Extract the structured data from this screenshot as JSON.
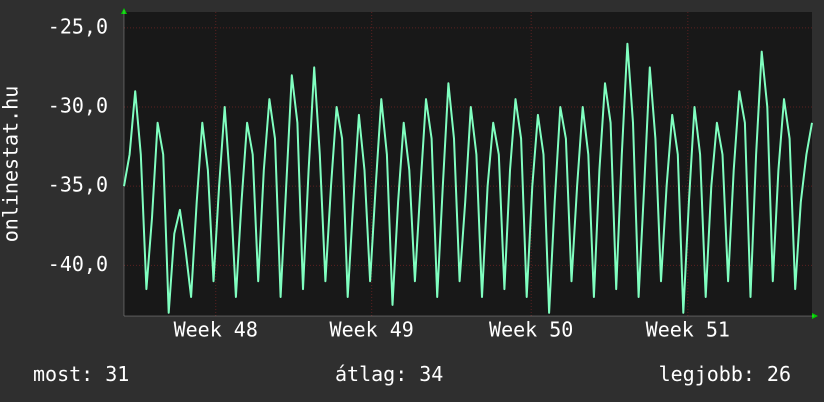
{
  "chart_data": {
    "type": "line",
    "ylabel": "onlinestat.hu",
    "xlim": [
      0,
      30.75
    ],
    "xticks": [
      {
        "value": 4.1,
        "label": "Week 48"
      },
      {
        "value": 11.07,
        "label": "Week 49"
      },
      {
        "value": 18.2,
        "label": "Week 50"
      },
      {
        "value": 25.2,
        "label": "Week 51"
      }
    ],
    "ylim": [
      -43.2,
      -24
    ],
    "yticks": [
      {
        "value": -25,
        "label": "-25,0"
      },
      {
        "value": -30,
        "label": "-30,0"
      },
      {
        "value": -35,
        "label": "-35,0"
      },
      {
        "value": -40,
        "label": "-40,0"
      }
    ],
    "grid": true,
    "series": [
      {
        "color": "#80ffc0",
        "x": [
          0,
          0.25,
          0.5,
          0.75,
          1,
          1.25,
          1.5,
          1.75,
          2,
          2.25,
          2.5,
          2.75,
          3,
          3.25,
          3.5,
          3.75,
          4,
          4.25,
          4.5,
          4.75,
          5,
          5.25,
          5.5,
          5.75,
          6,
          6.25,
          6.5,
          6.75,
          7,
          7.25,
          7.5,
          7.75,
          8,
          8.25,
          8.5,
          8.75,
          9,
          9.25,
          9.5,
          9.75,
          10,
          10.25,
          10.5,
          10.75,
          11,
          11.25,
          11.5,
          11.75,
          12,
          12.25,
          12.5,
          12.75,
          13,
          13.25,
          13.5,
          13.75,
          14,
          14.25,
          14.5,
          14.75,
          15,
          15.25,
          15.5,
          15.75,
          16,
          16.25,
          16.5,
          16.75,
          17,
          17.25,
          17.5,
          17.75,
          18,
          18.25,
          18.5,
          18.75,
          19,
          19.25,
          19.5,
          19.75,
          20,
          20.25,
          20.5,
          20.75,
          21,
          21.25,
          21.5,
          21.75,
          22,
          22.25,
          22.5,
          22.75,
          23,
          23.25,
          23.5,
          23.75,
          24,
          24.25,
          24.5,
          24.75,
          25,
          25.25,
          25.5,
          25.75,
          26,
          26.25,
          26.5,
          26.75,
          27,
          27.25,
          27.5,
          27.75,
          28,
          28.25,
          28.5,
          28.75,
          29,
          29.25,
          29.5,
          29.75,
          30,
          30.25,
          30.5,
          30.75
        ],
        "values": [
          -35,
          -33,
          -29,
          -33,
          -41.5,
          -37,
          -31,
          -33,
          -43,
          -38,
          -36.5,
          -39,
          -42,
          -36,
          -31,
          -34,
          -41,
          -35,
          -30,
          -35,
          -42,
          -36,
          -31,
          -33,
          -41,
          -34,
          -29.5,
          -32,
          -42,
          -35,
          -28,
          -31,
          -41.5,
          -34,
          -27.5,
          -33,
          -41,
          -35,
          -30,
          -32,
          -42,
          -36,
          -30.5,
          -34,
          -41,
          -35,
          -29.5,
          -33,
          -42.5,
          -36,
          -31,
          -34,
          -41,
          -35,
          -29.5,
          -32,
          -42,
          -35,
          -28.5,
          -32,
          -41,
          -36,
          -30,
          -33,
          -42,
          -35,
          -31,
          -33,
          -41.5,
          -34,
          -29.5,
          -32,
          -42,
          -35,
          -30.5,
          -33,
          -43,
          -36,
          -30,
          -32,
          -41,
          -35,
          -30,
          -33,
          -42,
          -34,
          -28.5,
          -31,
          -41.5,
          -33,
          -26,
          -31,
          -42,
          -35,
          -27.5,
          -32,
          -41,
          -35,
          -30.5,
          -33,
          -43,
          -36,
          -30,
          -33,
          -42,
          -35,
          -31,
          -33,
          -41,
          -34,
          -29,
          -31,
          -42,
          -33,
          -26.5,
          -30,
          -41,
          -34,
          -29.5,
          -32,
          -41.5,
          -36,
          -33,
          -31
        ]
      }
    ]
  },
  "footer": [
    {
      "label": "most:",
      "value": 31
    },
    {
      "label": "átlag:",
      "value": 34
    },
    {
      "label": "legjobb:",
      "value": 26
    }
  ]
}
